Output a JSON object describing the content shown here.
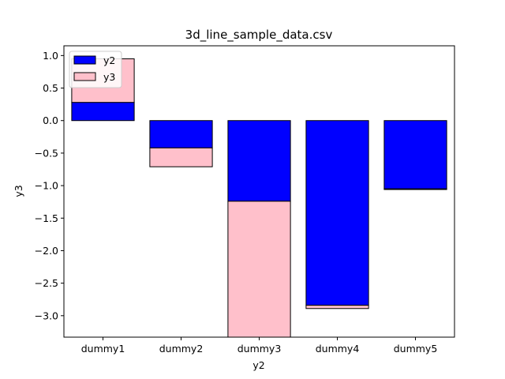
{
  "chart_data": {
    "type": "bar",
    "stacked": true,
    "title": "3d_line_sample_data.csv",
    "xlabel": "y2",
    "ylabel": "y3",
    "categories": [
      "dummy1",
      "dummy2",
      "dummy3",
      "dummy4",
      "dummy5"
    ],
    "series": [
      {
        "name": "y2",
        "values": [
          0.28,
          -0.42,
          -1.24,
          -2.84,
          -1.05
        ],
        "color": "#0000ff"
      },
      {
        "name": "y3",
        "values": [
          0.67,
          -0.29,
          -2.1,
          -0.05,
          -0.01
        ],
        "color": "#ffc0cb"
      }
    ],
    "ylim": [
      -3.33,
      1.15
    ],
    "yticks": [
      "1.0",
      "0.5",
      "0.0",
      "−0.5",
      "−1.0",
      "−1.5",
      "−2.0",
      "−2.5",
      "−3.0"
    ],
    "legend": {
      "placement": "top-left"
    },
    "grid": false
  }
}
